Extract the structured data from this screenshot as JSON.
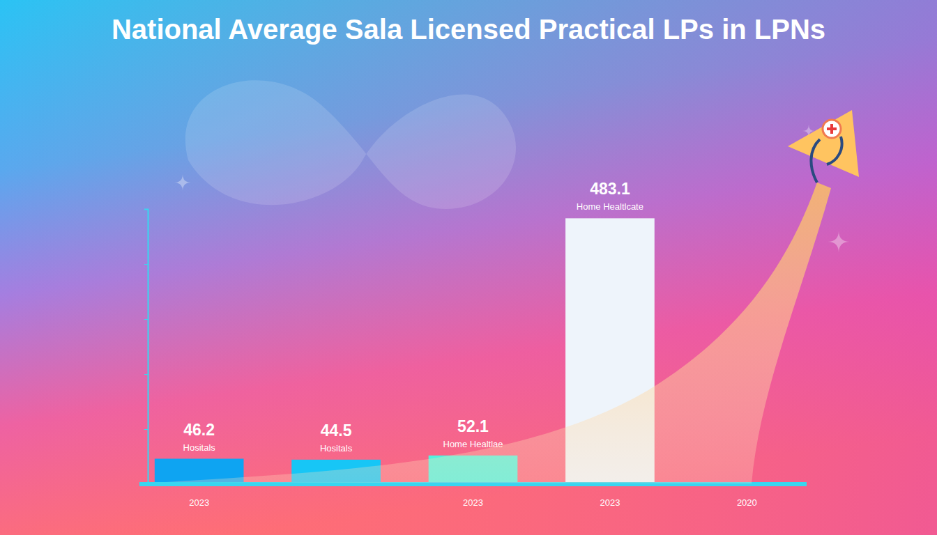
{
  "chart_data": {
    "type": "bar",
    "title": "National Average Sala Licensed Practical LPs in LPNs",
    "categories": [
      "2023",
      null,
      "2023",
      "2023",
      "2020"
    ],
    "values": [
      46.2,
      44.5,
      52.1,
      483.1,
      null
    ],
    "annotations": [
      "Hositals",
      "Hositals",
      "Home Healtlae",
      "Home Healtlcate",
      null
    ],
    "colors": [
      "#0ea4f2",
      "#17c6f6",
      "#52f2df",
      "#eef4fb",
      null
    ],
    "ylim": [
      0,
      500
    ],
    "yticks": [
      0,
      100,
      200,
      300,
      400,
      500
    ],
    "grid": false,
    "data_labels": true,
    "tick_labels": "x"
  }
}
